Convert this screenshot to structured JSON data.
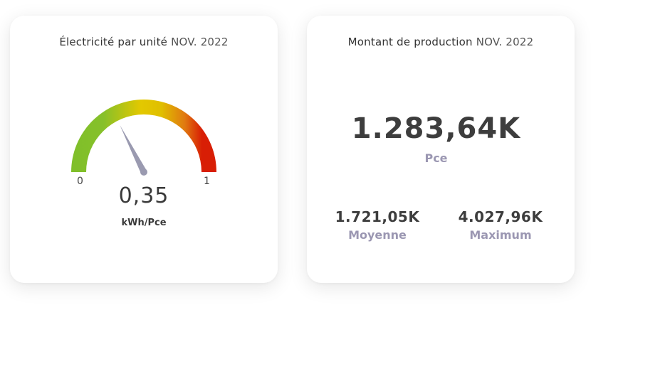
{
  "electricity_card": {
    "title": "Électricité par unité",
    "period": "NOV. 2022",
    "gauge": {
      "min_label": "0",
      "max_label": "1",
      "min": 0,
      "max": 1,
      "value": 0.35,
      "value_label": "0,35",
      "unit": "kWh/Pce",
      "colors": [
        "#7fbf2a",
        "#e3c800",
        "#e07a10",
        "#d81e05"
      ],
      "needle_color": "#9a9ab0"
    }
  },
  "production_card": {
    "title": "Montant de production",
    "period": "NOV. 2022",
    "main_value": "1.283,64K",
    "main_unit": "Pce",
    "average": {
      "value": "1.721,05K",
      "label": "Moyenne"
    },
    "maximum": {
      "value": "4.027,96K",
      "label": "Maximum"
    },
    "label_color": "#9b97b2"
  }
}
